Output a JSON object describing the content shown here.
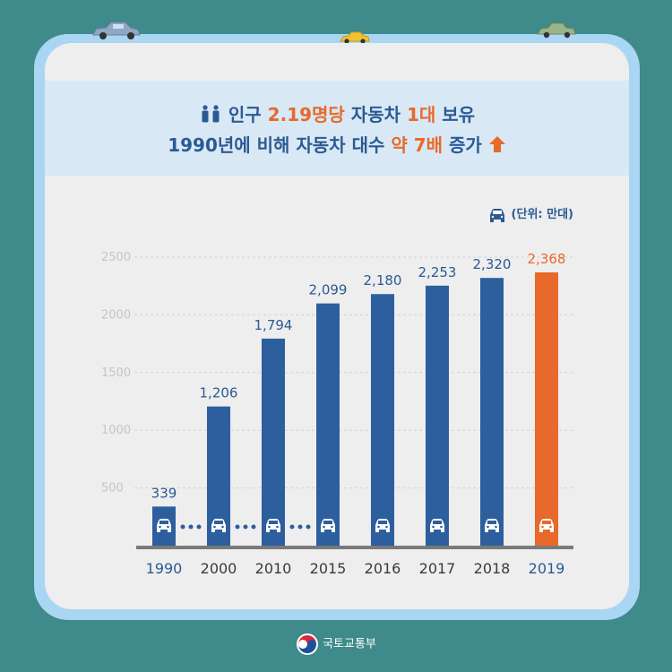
{
  "headline": {
    "line1_pre": "인구 ",
    "line1_hl": "2.19명당",
    "line1_mid": " 자동차 ",
    "line1_hl2": "1대",
    "line1_post": " 보유",
    "line2_pre": "1990년에 비해 자동차 대수 ",
    "line2_hl": "약 7배",
    "line2_post": " 증가"
  },
  "unit_label": "(단위: 만대)",
  "footer": "국토교통부",
  "icons": [
    "people-icon",
    "up-arrow-icon",
    "car-icon",
    "taegeuk-logo"
  ],
  "colors": {
    "background": "#3f8a8a",
    "bar": "#2d5f9e",
    "highlight": "#e8692b",
    "text_blue": "#2b5a93"
  },
  "chart_data": {
    "type": "bar",
    "categories": [
      "1990",
      "2000",
      "2010",
      "2015",
      "2016",
      "2017",
      "2018",
      "2019"
    ],
    "values": [
      339,
      1206,
      1794,
      2099,
      2180,
      2253,
      2320,
      2368
    ],
    "value_labels": [
      "339",
      "1,206",
      "1,794",
      "2,099",
      "2,180",
      "2,253",
      "2,320",
      "2,368"
    ],
    "highlight_index": 7,
    "yticks": [
      500,
      1000,
      1500,
      2000,
      2500
    ],
    "ylim": [
      0,
      2500
    ],
    "grid": true,
    "title": "",
    "xlabel": "",
    "ylabel": ""
  }
}
